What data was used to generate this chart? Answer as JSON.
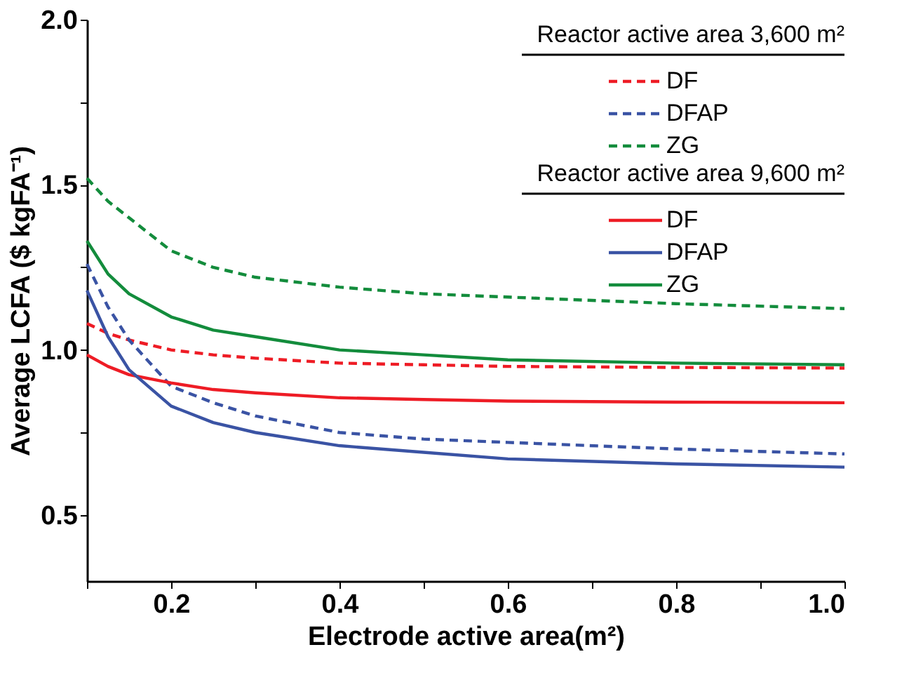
{
  "chart_data": {
    "type": "line",
    "xlabel": "Electrode active area(m²)",
    "ylabel": "Average LCFA ($ kgFA⁻¹)",
    "annotations": [
      "Reactor active area 3,600 m²",
      "Reactor active area 9,600 m²"
    ],
    "x": [
      0.1,
      0.125,
      0.15,
      0.2,
      0.25,
      0.3,
      0.4,
      0.5,
      0.6,
      0.8,
      1.0
    ],
    "series": [
      {
        "name": "DF",
        "color": "#ee1c25",
        "line_style": "dashed",
        "values": [
          1.08,
          1.05,
          1.03,
          1.0,
          0.985,
          0.975,
          0.96,
          0.955,
          0.95,
          0.947,
          0.945
        ]
      },
      {
        "name": "DFAP",
        "color": "#3a53a4",
        "line_style": "dashed",
        "values": [
          1.26,
          1.13,
          1.03,
          0.89,
          0.84,
          0.8,
          0.75,
          0.73,
          0.72,
          0.7,
          0.685
        ]
      },
      {
        "name": "ZG",
        "color": "#138c3c",
        "line_style": "dashed",
        "values": [
          1.52,
          1.45,
          1.4,
          1.3,
          1.25,
          1.22,
          1.19,
          1.17,
          1.16,
          1.14,
          1.125
        ]
      },
      {
        "name": "DF",
        "color": "#ee1c25",
        "line_style": "solid",
        "values": [
          0.985,
          0.95,
          0.925,
          0.9,
          0.88,
          0.87,
          0.855,
          0.85,
          0.845,
          0.842,
          0.84
        ]
      },
      {
        "name": "DFAP",
        "color": "#3a53a4",
        "line_style": "solid",
        "values": [
          1.18,
          1.04,
          0.94,
          0.83,
          0.78,
          0.75,
          0.71,
          0.69,
          0.67,
          0.655,
          0.645
        ]
      },
      {
        "name": "ZG",
        "color": "#138c3c",
        "line_style": "solid",
        "values": [
          1.33,
          1.23,
          1.17,
          1.1,
          1.06,
          1.04,
          1.0,
          0.985,
          0.97,
          0.96,
          0.955
        ]
      }
    ],
    "xlim": [
      0.1,
      1.0
    ],
    "xticks": [
      {
        "value": 0.1,
        "label": null
      },
      0.2,
      {
        "value": 0.3,
        "label": null
      },
      0.4,
      {
        "value": 0.5,
        "label": null
      },
      0.6,
      {
        "value": 0.7,
        "label": null
      },
      0.8,
      {
        "value": 0.9,
        "label": null
      },
      {
        "value": 1.0,
        "label": "1.0"
      }
    ],
    "ylim": [
      0.3,
      2.0
    ],
    "yticks": [
      0.5,
      {
        "value": 0.75,
        "label": null
      },
      {
        "value": 1.0,
        "label": "1.0"
      },
      {
        "value": 1.25,
        "label": null
      },
      1.5,
      {
        "value": 1.75,
        "label": null
      },
      {
        "value": 2.0,
        "label": "2.0"
      }
    ],
    "grid": false,
    "legend": "top right",
    "marker": "none"
  }
}
